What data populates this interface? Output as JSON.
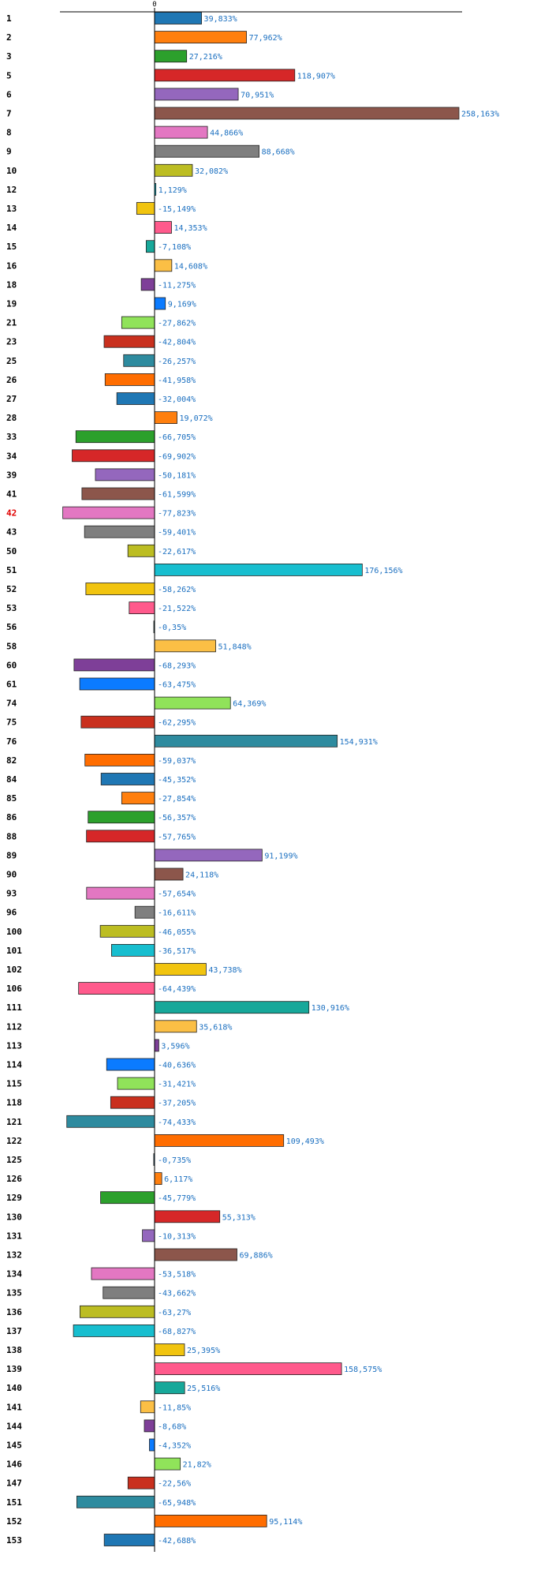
{
  "chart_data": {
    "type": "bar",
    "orientation": "horizontal",
    "title": "",
    "xlabel": "",
    "ylabel": "",
    "zero_label": "0",
    "grid": false,
    "legend": "none",
    "highlighted_category": "42",
    "categories": [
      "1",
      "2",
      "3",
      "5",
      "6",
      "7",
      "8",
      "9",
      "10",
      "12",
      "13",
      "14",
      "15",
      "16",
      "18",
      "19",
      "21",
      "23",
      "25",
      "26",
      "27",
      "28",
      "33",
      "34",
      "39",
      "41",
      "42",
      "43",
      "50",
      "51",
      "52",
      "53",
      "56",
      "58",
      "60",
      "61",
      "74",
      "75",
      "76",
      "82",
      "84",
      "85",
      "86",
      "88",
      "89",
      "90",
      "93",
      "96",
      "100",
      "101",
      "102",
      "106",
      "111",
      "112",
      "113",
      "114",
      "115",
      "118",
      "121",
      "122",
      "125",
      "126",
      "129",
      "130",
      "131",
      "132",
      "134",
      "135",
      "136",
      "137",
      "138",
      "139",
      "140",
      "141",
      "144",
      "145",
      "146",
      "147",
      "151",
      "152",
      "153"
    ],
    "values": [
      39.833,
      77.962,
      27.216,
      118.907,
      70.951,
      258.163,
      44.866,
      88.668,
      32.082,
      1.129,
      -15.149,
      14.353,
      -7.108,
      14.608,
      -11.275,
      9.169,
      -27.862,
      -42.804,
      -26.257,
      -41.958,
      -32.004,
      19.072,
      -66.705,
      -69.902,
      -50.181,
      -61.599,
      -77.823,
      -59.401,
      -22.617,
      176.156,
      -58.262,
      -21.522,
      -0.35,
      51.848,
      -68.293,
      -63.475,
      64.369,
      -62.295,
      154.931,
      -59.037,
      -45.352,
      -27.854,
      -56.357,
      -57.765,
      91.199,
      24.118,
      -57.654,
      -16.611,
      -46.055,
      -36.517,
      43.738,
      -64.439,
      130.916,
      35.618,
      3.596,
      -40.636,
      -31.421,
      -37.205,
      -74.433,
      109.493,
      -0.735,
      6.117,
      -45.779,
      55.313,
      -10.313,
      69.886,
      -53.518,
      -43.662,
      -63.27,
      -68.827,
      25.395,
      158.575,
      25.516,
      -11.85,
      -8.68,
      -4.352,
      21.82,
      -22.56,
      -65.948,
      95.114,
      -42.688
    ],
    "value_labels": [
      "39,833%",
      "77,962%",
      "27,216%",
      "118,907%",
      "70,951%",
      "258,163%",
      "44,866%",
      "88,668%",
      "32,082%",
      "1,129%",
      "-15,149%",
      "14,353%",
      "-7,108%",
      "14,608%",
      "-11,275%",
      "9,169%",
      "-27,862%",
      "-42,804%",
      "-26,257%",
      "-41,958%",
      "-32,004%",
      "19,072%",
      "-66,705%",
      "-69,902%",
      "-50,181%",
      "-61,599%",
      "-77,823%",
      "-59,401%",
      "-22,617%",
      "176,156%",
      "-58,262%",
      "-21,522%",
      "-0,35%",
      "51,848%",
      "-68,293%",
      "-63,475%",
      "64,369%",
      "-62,295%",
      "154,931%",
      "-59,037%",
      "-45,352%",
      "-27,854%",
      "-56,357%",
      "-57,765%",
      "91,199%",
      "24,118%",
      "-57,654%",
      "-16,611%",
      "-46,055%",
      "-36,517%",
      "43,738%",
      "-64,439%",
      "130,916%",
      "35,618%",
      "3,596%",
      "-40,636%",
      "-31,421%",
      "-37,205%",
      "-74,433%",
      "109,493%",
      "-0,735%",
      "6,117%",
      "-45,779%",
      "55,313%",
      "-10,313%",
      "69,886%",
      "-53,518%",
      "-43,662%",
      "-63,27%",
      "-68,827%",
      "25,395%",
      "158,575%",
      "25,516%",
      "-11,85%",
      "-8,68%",
      "-4,352%",
      "21,82%",
      "-22,56%",
      "-65,948%",
      "95,114%",
      "-42,688%"
    ],
    "palette": [
      "#1f77b4",
      "#ff7f0e",
      "#2ca02c",
      "#d62728",
      "#9467bd",
      "#8c564b",
      "#e377c2",
      "#7f7f7f",
      "#bcbd22",
      "#17becf",
      "#f1c40f",
      "#ff5a8c",
      "#17a89a",
      "#fbbf45",
      "#7e3f98",
      "#0b7bff",
      "#90e35a",
      "#c9301e",
      "#2e8b9f",
      "#ff6d00"
    ],
    "bar_colors": [
      "#1f77b4",
      "#ff7f0e",
      "#2ca02c",
      "#d62728",
      "#9467bd",
      "#8c564b",
      "#e377c2",
      "#7f7f7f",
      "#bcbd22",
      "#17becf",
      "#f1c40f",
      "#ff5a8c",
      "#17a89a",
      "#fbbf45",
      "#7e3f98",
      "#0b7bff",
      "#90e35a",
      "#c9301e",
      "#2e8b9f",
      "#ff6d00",
      "#1f77b4",
      "#ff7f0e",
      "#2ca02c",
      "#d62728",
      "#9467bd",
      "#8c564b",
      "#e377c2",
      "#7f7f7f",
      "#bcbd22",
      "#17becf",
      "#f1c40f",
      "#ff5a8c",
      "#17a89a",
      "#fbbf45",
      "#7e3f98",
      "#0b7bff",
      "#90e35a",
      "#c9301e",
      "#2e8b9f",
      "#ff6d00",
      "#1f77b4",
      "#ff7f0e",
      "#2ca02c",
      "#d62728",
      "#9467bd",
      "#8c564b",
      "#e377c2",
      "#7f7f7f",
      "#bcbd22",
      "#17becf",
      "#f1c40f",
      "#ff5a8c",
      "#17a89a",
      "#fbbf45",
      "#7e3f98",
      "#0b7bff",
      "#90e35a",
      "#c9301e",
      "#2e8b9f",
      "#ff6d00",
      "#1f77b4",
      "#ff7f0e",
      "#2ca02c",
      "#d62728",
      "#9467bd",
      "#8c564b",
      "#e377c2",
      "#7f7f7f",
      "#bcbd22",
      "#17becf",
      "#f1c40f",
      "#ff5a8c",
      "#17a89a",
      "#fbbf45",
      "#7e3f98",
      "#0b7bff",
      "#90e35a",
      "#c9301e",
      "#2e8b9f",
      "#ff6d00",
      "#1f77b4"
    ],
    "xlim": [
      -120,
      270
    ],
    "label_color": "#1a6fc0",
    "highlight_color": "#e00000"
  }
}
